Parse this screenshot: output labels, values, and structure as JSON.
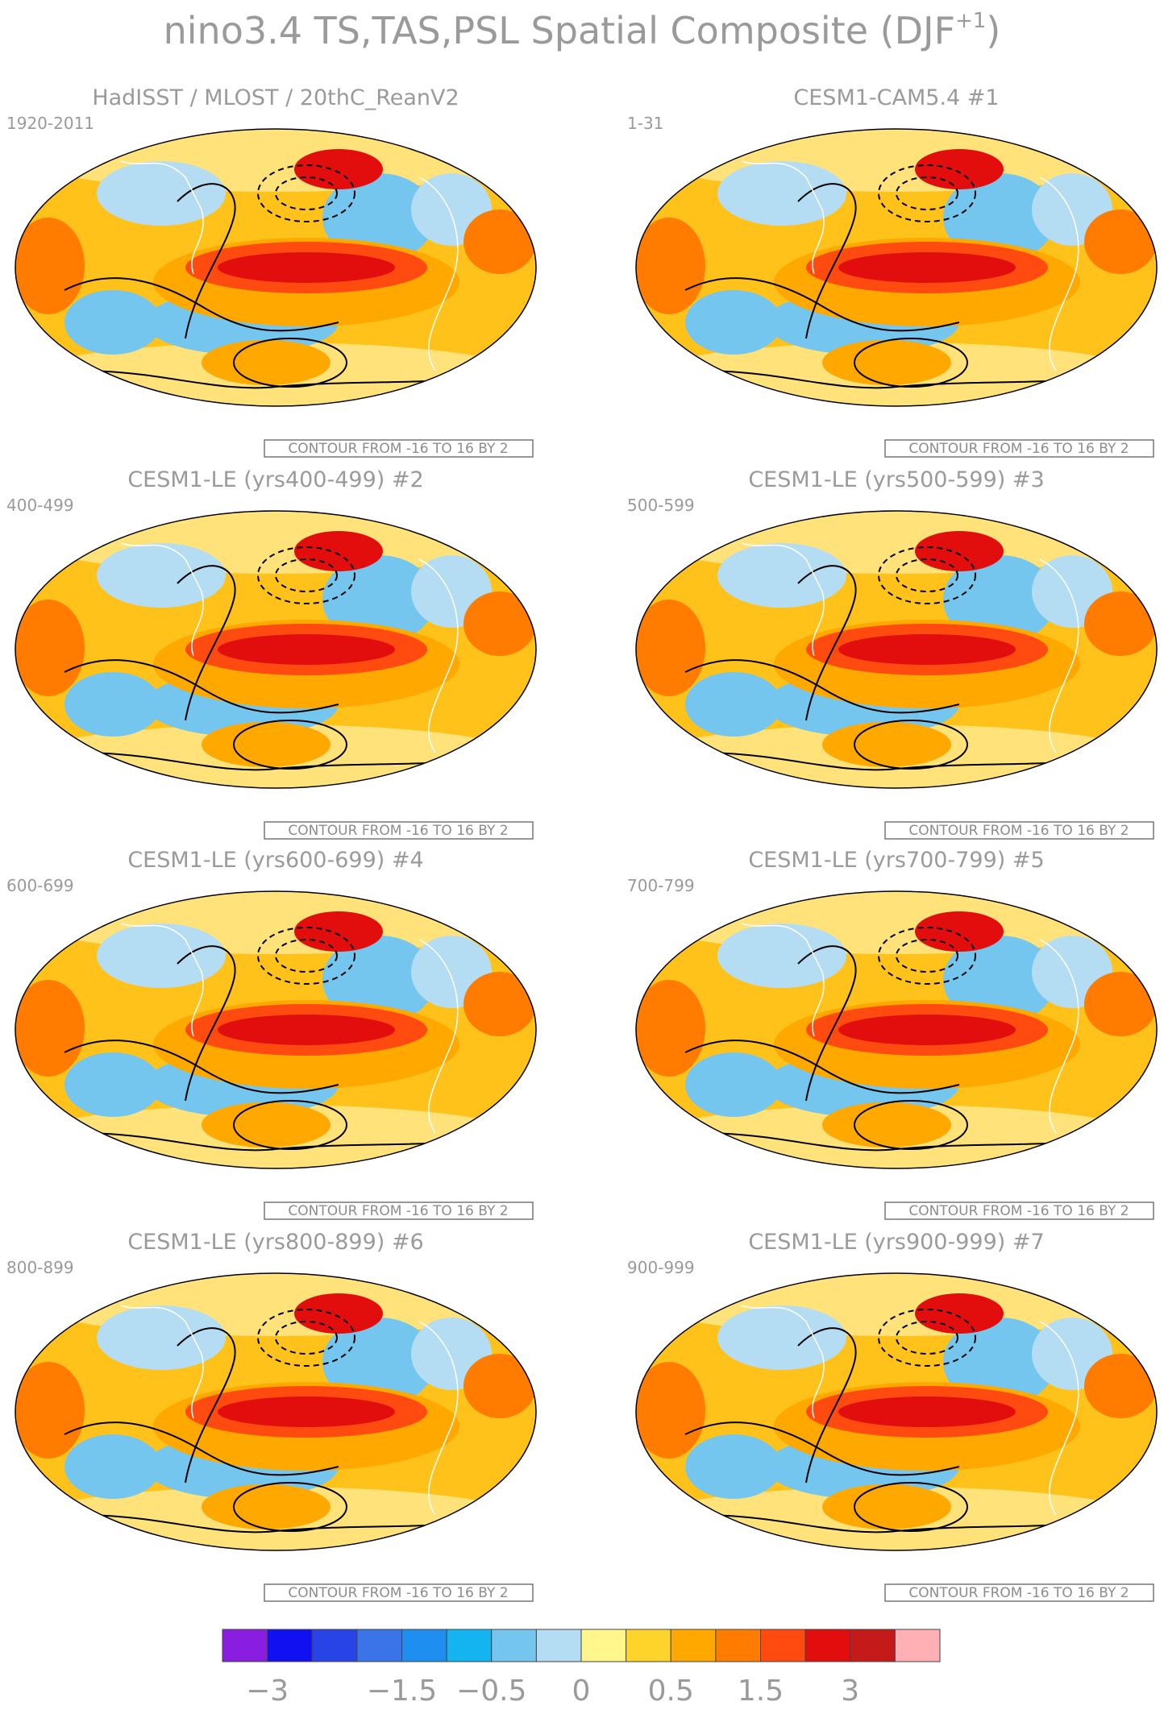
{
  "figure": {
    "title_main": "nino3.4 TS,TAS,PSL Spatial Composite (DJF",
    "title_sup": "+1",
    "title_close": ")"
  },
  "panels": [
    {
      "title": "HadISST / MLOST / 20thC_ReanV2",
      "years": "1920-2011",
      "contour_note": "CONTOUR FROM -16 TO 16 BY 2"
    },
    {
      "title": "CESM1-CAM5.4         #1",
      "years": "1-31",
      "contour_note": "CONTOUR FROM -16 TO 16 BY 2"
    },
    {
      "title": "CESM1-LE (yrs400-499) #2",
      "years": "400-499",
      "contour_note": "CONTOUR FROM -16 TO 16 BY 2"
    },
    {
      "title": "CESM1-LE (yrs500-599) #3",
      "years": "500-599",
      "contour_note": "CONTOUR FROM -16 TO 16 BY 2"
    },
    {
      "title": "CESM1-LE (yrs600-699) #4",
      "years": "600-699",
      "contour_note": "CONTOUR FROM -16 TO 16 BY 2"
    },
    {
      "title": "CESM1-LE (yrs700-799) #5",
      "years": "700-799",
      "contour_note": "CONTOUR FROM -16 TO 16 BY 2"
    },
    {
      "title": "CESM1-LE (yrs800-899) #6",
      "years": "800-899",
      "contour_note": "CONTOUR FROM -16 TO 16 BY 2"
    },
    {
      "title": "CESM1-LE (yrs900-999) #7",
      "years": "900-999",
      "contour_note": "CONTOUR FROM -16 TO 16 BY 2"
    }
  ],
  "chart_data": {
    "type": "heatmap",
    "title": "nino3.4 TS,TAS,PSL Spatial Composite (DJF+1)",
    "contour": {
      "min": -16,
      "max": 16,
      "step": 2
    },
    "colorbar": {
      "colors": [
        "#8a1ee0",
        "#1010f0",
        "#2844e6",
        "#3a74e8",
        "#1e8ef0",
        "#14b4f0",
        "#74c6ee",
        "#b4ddf4",
        "#fff68c",
        "#ffd42a",
        "#ffa800",
        "#ff7c00",
        "#ff4a10",
        "#e20e0e",
        "#c41a1a",
        "#ffb0b4"
      ],
      "tick_labels": [
        "−3",
        "−1.5",
        "−0.5",
        "0",
        "0.5",
        "1.5",
        "3"
      ]
    }
  }
}
